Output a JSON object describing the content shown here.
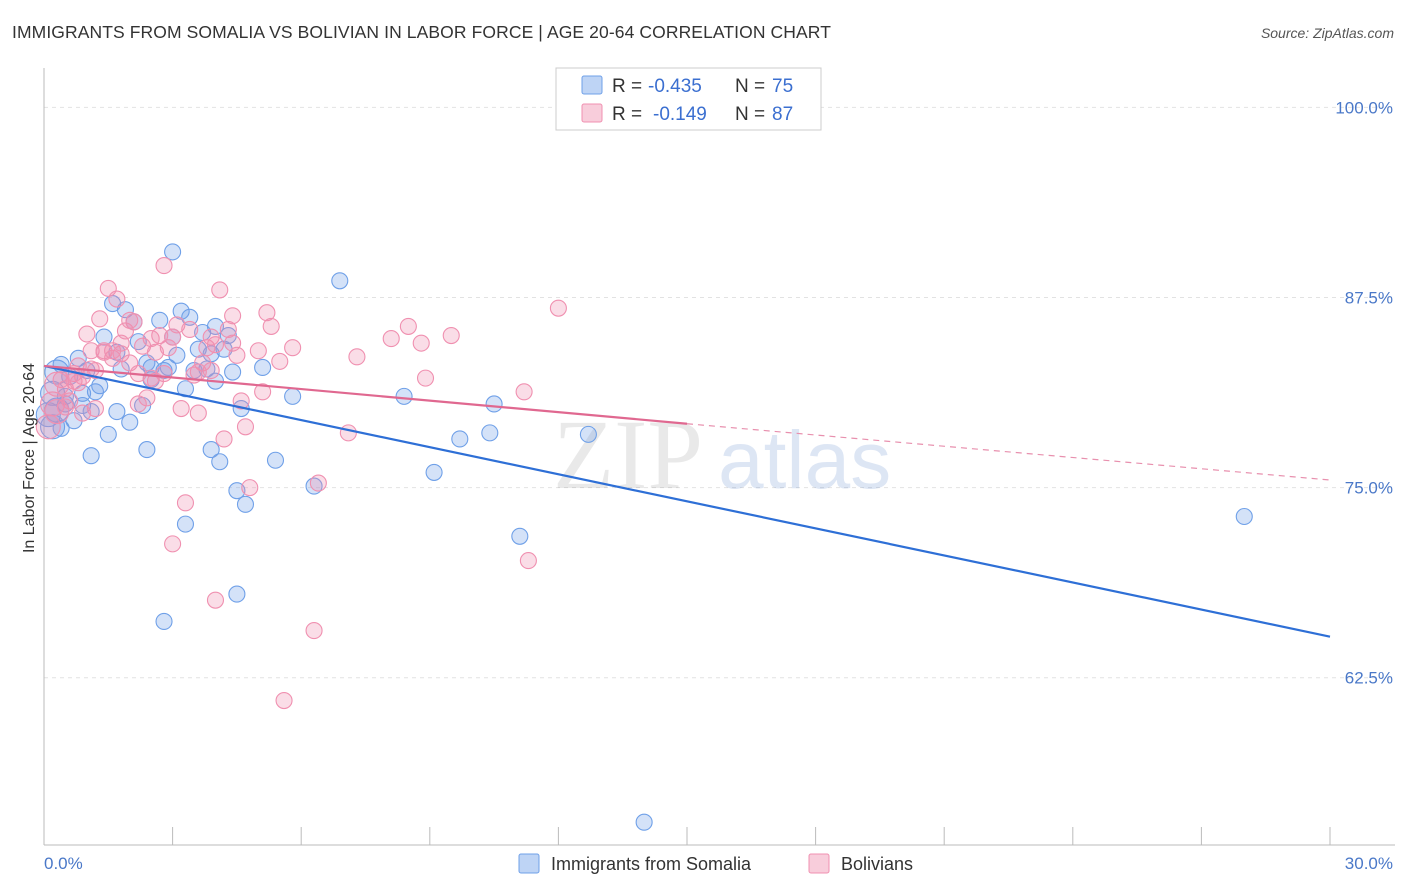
{
  "title": "IMMIGRANTS FROM SOMALIA VS BOLIVIAN IN LABOR FORCE | AGE 20-64 CORRELATION CHART",
  "source": "Source: ZipAtlas.com",
  "watermark": {
    "zip": "ZIP",
    "atlas": "atlas"
  },
  "legend_top": [
    {
      "r_label": "R =",
      "r_value": "-0.435",
      "n_label": "N =",
      "n_value": "75",
      "color": "#6fa0e8"
    },
    {
      "r_label": "R =",
      "r_value": "-0.149",
      "n_label": "N =",
      "n_value": "87",
      "color": "#f090b0"
    }
  ],
  "chart_data": {
    "type": "scatter",
    "title": "IMMIGRANTS FROM SOMALIA VS BOLIVIAN IN LABOR FORCE | AGE 20-64 CORRELATION CHART",
    "xlabel": "",
    "ylabel": "In Labor Force | Age 20-64",
    "xlim": [
      0,
      30
    ],
    "ylim": [
      51.5,
      102
    ],
    "x_ticks_labels": [
      "0.0%",
      "30.0%"
    ],
    "y_ticks": [
      62.5,
      75.0,
      87.5,
      100.0
    ],
    "y_tick_labels": [
      "62.5%",
      "75.0%",
      "87.5%",
      "100.0%"
    ],
    "grid": true,
    "legend_position": "top-center",
    "series": [
      {
        "name": "Immigrants from Somalia",
        "color": "#6fa0e8",
        "trend": {
          "x": [
            0,
            30
          ],
          "y": [
            83.0,
            65.2
          ],
          "dashed_from": null
        },
        "points": [
          [
            0.1,
            79.8
          ],
          [
            0.2,
            81.2
          ],
          [
            0.3,
            82.6
          ],
          [
            0.3,
            80.1
          ],
          [
            0.4,
            83.1
          ],
          [
            0.5,
            81.0
          ],
          [
            0.5,
            80.5
          ],
          [
            0.6,
            82.3
          ],
          [
            0.7,
            79.4
          ],
          [
            0.8,
            83.5
          ],
          [
            0.9,
            81.2
          ],
          [
            1.0,
            82.7
          ],
          [
            1.1,
            80.0
          ],
          [
            1.2,
            81.3
          ],
          [
            1.1,
            77.1
          ],
          [
            1.3,
            81.7
          ],
          [
            1.4,
            84.9
          ],
          [
            1.6,
            87.1
          ],
          [
            1.7,
            83.9
          ],
          [
            1.7,
            80.0
          ],
          [
            1.8,
            82.8
          ],
          [
            1.9,
            86.7
          ],
          [
            2.0,
            79.3
          ],
          [
            2.1,
            85.9
          ],
          [
            2.2,
            84.6
          ],
          [
            2.3,
            80.4
          ],
          [
            2.4,
            77.5
          ],
          [
            2.4,
            83.2
          ],
          [
            2.5,
            82.1
          ],
          [
            2.5,
            82.9
          ],
          [
            2.7,
            86.0
          ],
          [
            2.8,
            82.7
          ],
          [
            2.9,
            82.9
          ],
          [
            3.0,
            84.9
          ],
          [
            3.0,
            90.5
          ],
          [
            3.1,
            83.7
          ],
          [
            3.2,
            86.6
          ],
          [
            3.3,
            72.6
          ],
          [
            3.3,
            81.5
          ],
          [
            3.4,
            86.2
          ],
          [
            3.5,
            82.7
          ],
          [
            3.6,
            84.1
          ],
          [
            3.7,
            85.2
          ],
          [
            3.8,
            82.8
          ],
          [
            3.9,
            83.8
          ],
          [
            3.9,
            77.5
          ],
          [
            4.0,
            85.6
          ],
          [
            4.0,
            82.0
          ],
          [
            4.1,
            76.7
          ],
          [
            4.2,
            84.1
          ],
          [
            4.3,
            85.0
          ],
          [
            4.4,
            82.6
          ],
          [
            4.5,
            74.8
          ],
          [
            4.6,
            80.2
          ],
          [
            4.7,
            73.9
          ],
          [
            5.1,
            82.9
          ],
          [
            5.4,
            76.8
          ],
          [
            5.8,
            81.0
          ],
          [
            6.3,
            75.1
          ],
          [
            6.9,
            88.6
          ],
          [
            8.4,
            81.0
          ],
          [
            9.1,
            76.0
          ],
          [
            9.7,
            78.2
          ],
          [
            10.5,
            80.5
          ],
          [
            10.4,
            78.6
          ],
          [
            11.1,
            71.8
          ],
          [
            12.7,
            78.5
          ],
          [
            28.0,
            73.1
          ],
          [
            14.0,
            53.0
          ],
          [
            4.5,
            68.0
          ],
          [
            2.8,
            66.2
          ],
          [
            0.2,
            79.0
          ],
          [
            0.4,
            78.9
          ],
          [
            1.5,
            78.5
          ],
          [
            0.9,
            80.4
          ]
        ]
      },
      {
        "name": "Bolivians",
        "color": "#f090b0",
        "trend": {
          "x": [
            0,
            15
          ],
          "y": [
            83.0,
            79.2
          ],
          "dashed_from": 15,
          "dashed_to": [
            30,
            75.5
          ]
        },
        "points": [
          [
            0.1,
            79.0
          ],
          [
            0.2,
            80.5
          ],
          [
            0.3,
            80.0
          ],
          [
            0.4,
            82.1
          ],
          [
            0.5,
            81.5
          ],
          [
            0.6,
            80.7
          ],
          [
            0.7,
            82.5
          ],
          [
            0.8,
            83.0
          ],
          [
            0.9,
            82.3
          ],
          [
            1.0,
            85.1
          ],
          [
            1.1,
            84.0
          ],
          [
            1.2,
            82.7
          ],
          [
            1.3,
            86.1
          ],
          [
            1.4,
            84.0
          ],
          [
            1.5,
            88.1
          ],
          [
            1.6,
            83.5
          ],
          [
            1.7,
            87.4
          ],
          [
            1.8,
            83.8
          ],
          [
            1.9,
            85.3
          ],
          [
            2.0,
            83.2
          ],
          [
            2.1,
            85.9
          ],
          [
            2.2,
            82.5
          ],
          [
            2.3,
            84.3
          ],
          [
            2.4,
            80.9
          ],
          [
            2.5,
            82.2
          ],
          [
            2.6,
            83.9
          ],
          [
            2.7,
            85.0
          ],
          [
            2.8,
            82.5
          ],
          [
            2.8,
            89.6
          ],
          [
            2.9,
            84.2
          ],
          [
            3.0,
            71.3
          ],
          [
            3.1,
            85.7
          ],
          [
            3.2,
            80.2
          ],
          [
            3.3,
            74.0
          ],
          [
            3.4,
            85.4
          ],
          [
            3.5,
            82.4
          ],
          [
            3.6,
            79.9
          ],
          [
            3.7,
            83.2
          ],
          [
            3.8,
            84.2
          ],
          [
            3.9,
            82.7
          ],
          [
            4.0,
            67.6
          ],
          [
            4.1,
            88.0
          ],
          [
            4.2,
            78.2
          ],
          [
            4.3,
            85.4
          ],
          [
            4.4,
            84.5
          ],
          [
            4.5,
            83.7
          ],
          [
            4.6,
            80.7
          ],
          [
            4.7,
            79.0
          ],
          [
            4.8,
            75.0
          ],
          [
            5.1,
            81.3
          ],
          [
            5.2,
            86.5
          ],
          [
            5.3,
            85.6
          ],
          [
            5.5,
            83.3
          ],
          [
            5.8,
            84.2
          ],
          [
            6.3,
            65.6
          ],
          [
            6.4,
            75.3
          ],
          [
            7.1,
            78.6
          ],
          [
            7.3,
            83.6
          ],
          [
            8.1,
            84.8
          ],
          [
            8.5,
            85.6
          ],
          [
            8.8,
            84.5
          ],
          [
            8.9,
            82.2
          ],
          [
            9.5,
            85.0
          ],
          [
            11.3,
            70.2
          ],
          [
            11.2,
            81.3
          ],
          [
            12.0,
            86.8
          ],
          [
            5.6,
            61.0
          ],
          [
            0.5,
            80.3
          ],
          [
            0.8,
            81.9
          ],
          [
            1.2,
            80.2
          ],
          [
            2.0,
            86.0
          ],
          [
            2.6,
            82.0
          ],
          [
            3.9,
            84.9
          ],
          [
            0.3,
            81.8
          ],
          [
            1.1,
            82.8
          ],
          [
            1.6,
            84.0
          ],
          [
            2.2,
            80.5
          ],
          [
            3.0,
            84.9
          ],
          [
            4.4,
            86.3
          ],
          [
            5.0,
            84.0
          ],
          [
            1.4,
            83.9
          ],
          [
            0.9,
            79.9
          ],
          [
            2.5,
            84.8
          ],
          [
            3.6,
            82.6
          ],
          [
            0.7,
            82.0
          ],
          [
            1.8,
            84.5
          ],
          [
            4.0,
            84.4
          ]
        ]
      }
    ]
  },
  "bottom_legend": [
    {
      "label": "Immigrants from Somalia",
      "color": "#6fa0e8"
    },
    {
      "label": "Bolivians",
      "color": "#f090b0"
    }
  ]
}
